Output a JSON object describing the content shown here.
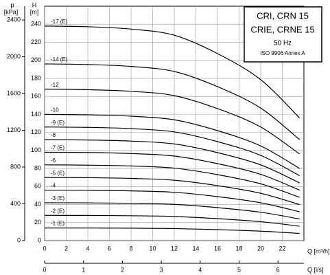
{
  "chart_data": {
    "type": "line",
    "title_box": [
      "CRI, CRN 15",
      "CRIE, CRNE 15",
      "50 Hz",
      "ISO 9906 Annex A"
    ],
    "y_label": "H",
    "y_unit": "[m]",
    "y2_label": "p",
    "y2_unit": "[kPa]",
    "x_label": "Q [m³/h]",
    "x2_label": "Q [l/s]",
    "x": [
      0,
      4,
      8,
      12,
      16,
      20,
      23.6
    ],
    "xlim": [
      0,
      24
    ],
    "xticks": [
      0,
      2,
      4,
      6,
      8,
      10,
      12,
      14,
      16,
      18,
      20,
      22
    ],
    "x2lim": [
      0,
      6.667
    ],
    "x2ticks": [
      0,
      1,
      2,
      3,
      4,
      5,
      6
    ],
    "ylim": [
      0,
      260
    ],
    "yticks": [
      0,
      20,
      40,
      60,
      80,
      100,
      120,
      140,
      160,
      180,
      200,
      220,
      240
    ],
    "y2lim": [
      0,
      2550.6
    ],
    "y2ticks": [
      0,
      400,
      800,
      1200,
      1600,
      2000,
      2400
    ],
    "grid": true,
    "series": [
      {
        "name": "-1 (E)",
        "color": "#000000",
        "values": [
          14,
          14,
          13.8,
          13.4,
          12.2,
          10.5,
          8
        ]
      },
      {
        "name": "-2 (E)",
        "color": "#000000",
        "values": [
          28,
          27.9,
          27.6,
          26.8,
          24.4,
          21,
          16
        ]
      },
      {
        "name": "-3 (E)",
        "color": "#000000",
        "values": [
          42,
          41.9,
          41.4,
          40.2,
          36.6,
          31.5,
          24
        ]
      },
      {
        "name": "-4",
        "color": "#000000",
        "values": [
          56,
          55.8,
          55.2,
          53.6,
          48.8,
          42,
          32
        ]
      },
      {
        "name": "-5 (E)",
        "color": "#000000",
        "values": [
          70,
          69.8,
          69,
          67,
          61,
          52.5,
          40
        ]
      },
      {
        "name": "-6",
        "color": "#000000",
        "values": [
          84,
          83.7,
          82.8,
          80.4,
          73.2,
          63,
          48
        ]
      },
      {
        "name": "-7 (E)",
        "color": "#000000",
        "values": [
          98,
          97.7,
          96.6,
          93.8,
          85.4,
          73.5,
          56
        ]
      },
      {
        "name": "-8",
        "color": "#000000",
        "values": [
          112,
          111.6,
          110.4,
          107.2,
          97.6,
          84,
          64
        ]
      },
      {
        "name": "-9 (E)",
        "color": "#000000",
        "values": [
          126,
          125.6,
          124.2,
          120.6,
          109.8,
          94.5,
          72
        ]
      },
      {
        "name": "-10",
        "color": "#000000",
        "values": [
          140,
          139.5,
          138,
          134,
          122,
          105,
          80
        ]
      },
      {
        "name": "-12",
        "color": "#000000",
        "values": [
          168,
          167.4,
          165.6,
          160.8,
          146.4,
          126,
          96
        ]
      },
      {
        "name": "-14 (E)",
        "color": "#000000",
        "values": [
          196,
          195.3,
          193.2,
          187.6,
          170.8,
          147,
          112
        ]
      },
      {
        "name": "-17 (E)",
        "color": "#000000",
        "values": [
          238,
          237.2,
          234.6,
          227.8,
          207.4,
          178.5,
          136
        ]
      }
    ]
  }
}
